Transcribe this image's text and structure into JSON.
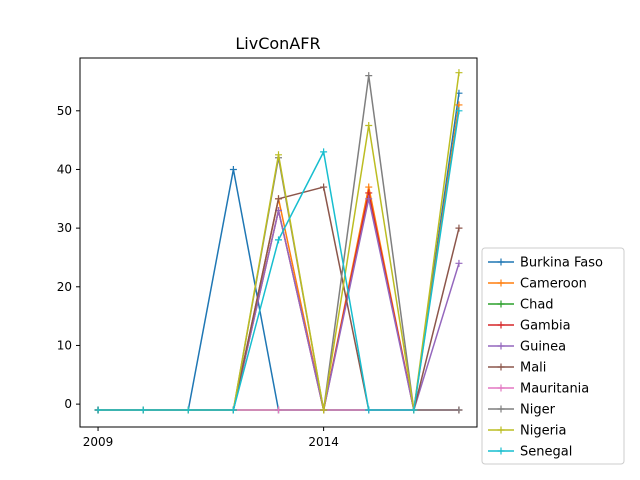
{
  "chart_data": {
    "type": "line",
    "title": "LivConAFR",
    "xlabel": "",
    "ylabel": "",
    "xlim": [
      2008.6,
      2017.4
    ],
    "ylim": [
      -3.9,
      59
    ],
    "x_ticks": [
      2009,
      2014
    ],
    "y_ticks": [
      0,
      10,
      20,
      30,
      40,
      50
    ],
    "grid": false,
    "legend_position": "lower-right-outside",
    "x": [
      2009,
      2010,
      2011,
      2012,
      2013,
      2014,
      2015,
      2016,
      2017
    ],
    "series": [
      {
        "name": "Burkina Faso",
        "color": "#1f77b4",
        "values": [
          -1,
          -1,
          -1,
          40,
          -1,
          -1,
          -1,
          -1,
          53
        ]
      },
      {
        "name": "Cameroon",
        "color": "#ff7f0e",
        "values": [
          -1,
          -1,
          -1,
          -1,
          35,
          -1,
          37,
          -1,
          51
        ]
      },
      {
        "name": "Chad",
        "color": "#2ca02c",
        "values": [
          -1,
          -1,
          -1,
          -1,
          -1,
          -1,
          -1,
          -1,
          -1
        ]
      },
      {
        "name": "Gambia",
        "color": "#d62728",
        "values": [
          -1,
          -1,
          -1,
          -1,
          33,
          -1,
          36,
          -1,
          -1
        ]
      },
      {
        "name": "Guinea",
        "color": "#9467bd",
        "values": [
          -1,
          -1,
          -1,
          -1,
          33,
          -1,
          35,
          -1,
          24
        ]
      },
      {
        "name": "Mali",
        "color": "#8c564b",
        "values": [
          -1,
          -1,
          -1,
          -1,
          35,
          37,
          -1,
          -1,
          30
        ]
      },
      {
        "name": "Mauritania",
        "color": "#e377c2",
        "values": [
          -1,
          -1,
          -1,
          -1,
          -1,
          -1,
          -1,
          -1,
          -1
        ]
      },
      {
        "name": "Niger",
        "color": "#7f7f7f",
        "values": [
          -1,
          -1,
          -1,
          -1,
          42,
          -1,
          56,
          -1,
          -1
        ]
      },
      {
        "name": "Nigeria",
        "color": "#bcbd22",
        "values": [
          -1,
          -1,
          -1,
          -1,
          42.5,
          -1,
          47.5,
          -1,
          56.5
        ]
      },
      {
        "name": "Senegal",
        "color": "#17becf",
        "values": [
          -1,
          -1,
          -1,
          -1,
          28,
          43,
          -1,
          -1,
          50
        ]
      }
    ]
  }
}
